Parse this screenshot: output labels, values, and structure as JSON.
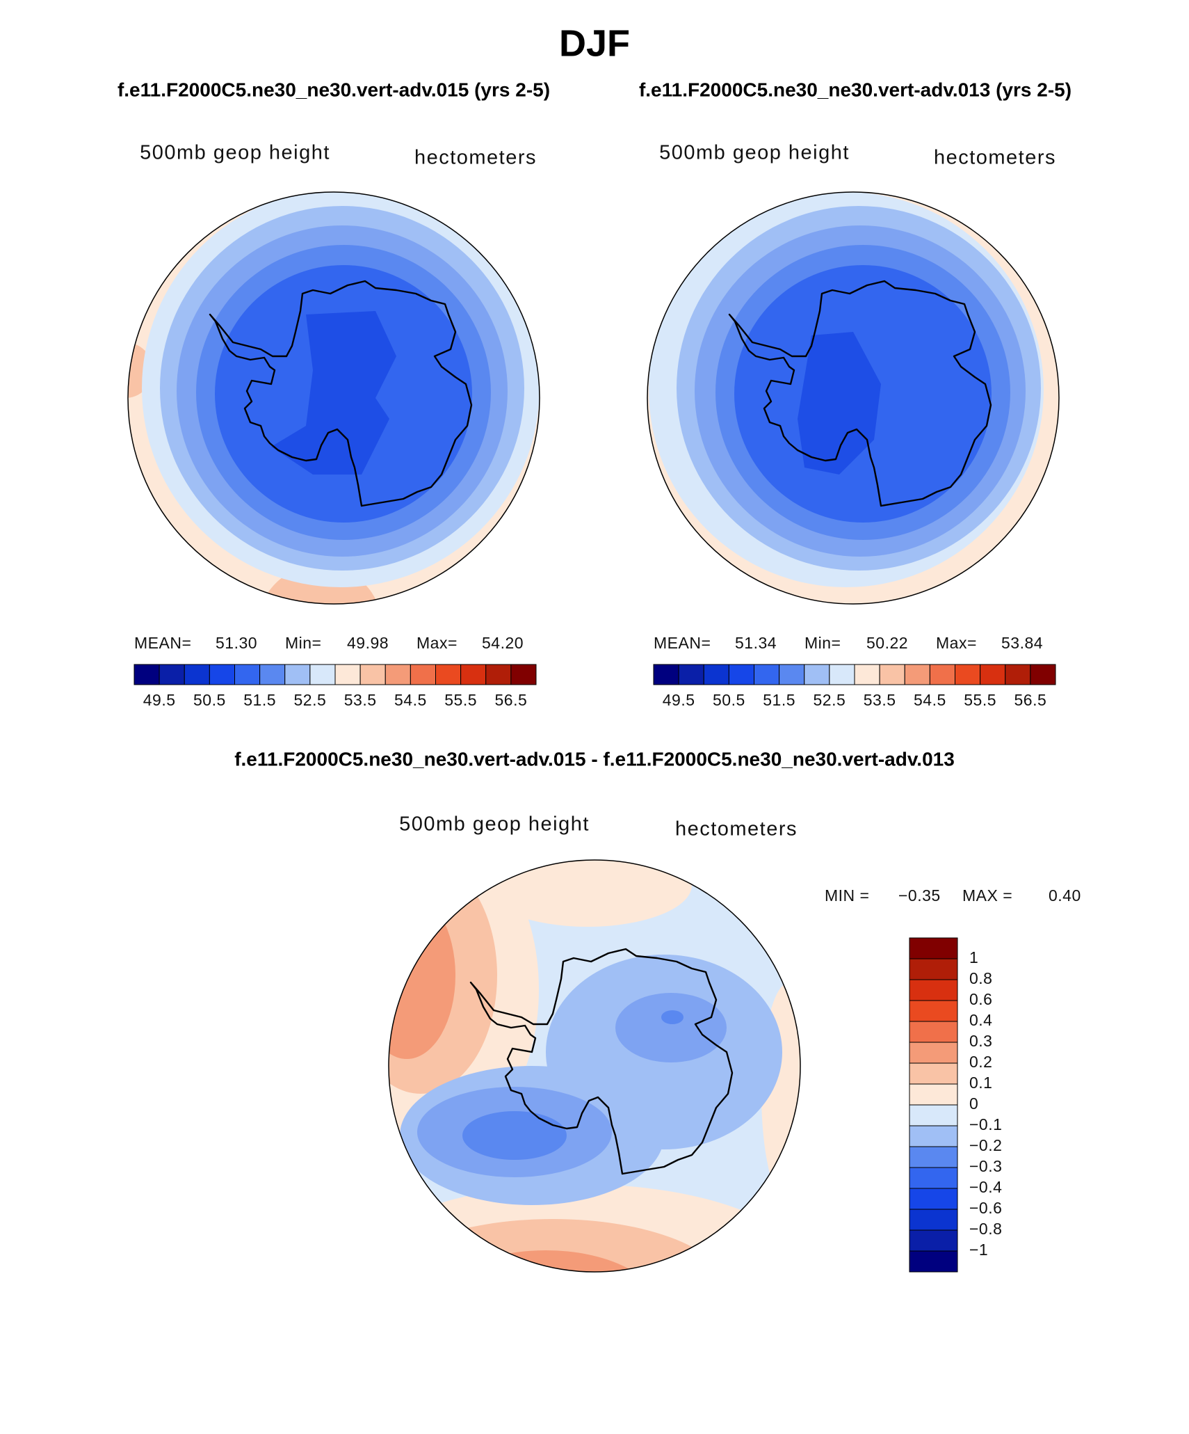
{
  "header": {
    "title": "DJF"
  },
  "panels": [
    {
      "subtitle": "f.e11.F2000C5.ne30_ne30.vert-adv.015 (yrs 2-5)",
      "left_label": "500mb  geop  height",
      "right_label": "hectometers",
      "stats": [
        {
          "label": "MEAN=",
          "value": "51.30"
        },
        {
          "label": "Min=",
          "value": "49.98"
        },
        {
          "label": "Max=",
          "value": "54.20"
        }
      ],
      "colorbar_labels": [
        "49.5",
        "50.5",
        "51.5",
        "52.5",
        "53.5",
        "54.5",
        "55.5",
        "56.5"
      ]
    },
    {
      "subtitle": "f.e11.F2000C5.ne30_ne30.vert-adv.013 (yrs 2-5)",
      "left_label": "500mb  geop  height",
      "right_label": "hectometers",
      "stats": [
        {
          "label": "MEAN=",
          "value": "51.34"
        },
        {
          "label": "Min=",
          "value": "50.22"
        },
        {
          "label": "Max=",
          "value": "53.84"
        }
      ],
      "colorbar_labels": [
        "49.5",
        "50.5",
        "51.5",
        "52.5",
        "53.5",
        "54.5",
        "55.5",
        "56.5"
      ]
    }
  ],
  "difference": {
    "title": "f.e11.F2000C5.ne30_ne30.vert-adv.015 - f.e11.F2000C5.ne30_ne30.vert-adv.013",
    "left_label": "500mb  geop  height",
    "right_label": "hectometers",
    "stats": [
      {
        "label": "MIN =",
        "value": "−0.35"
      },
      {
        "label": "MAX =",
        "value": "0.40"
      }
    ],
    "colorbar_labels": [
      "1",
      "0.8",
      "0.6",
      "0.4",
      "0.3",
      "0.2",
      "0.1",
      "0",
      "−0.1",
      "−0.2",
      "−0.3",
      "−0.4",
      "−0.6",
      "−0.8",
      "−1"
    ]
  }
}
